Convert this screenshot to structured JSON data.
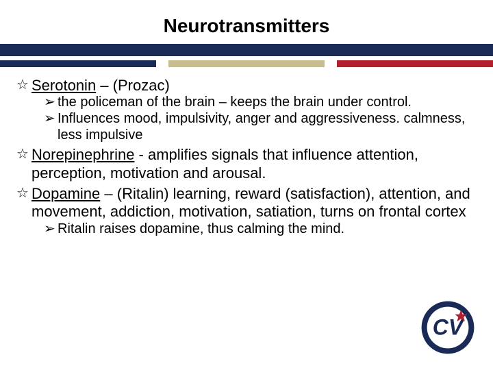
{
  "colors": {
    "navy": "#1a2a57",
    "red": "#b3202c",
    "khaki": "#c9bd8e",
    "white": "#ffffff",
    "text": "#000000"
  },
  "title": "Neurotransmitters",
  "items": [
    {
      "type": "star",
      "underlined": "Serotonin",
      "rest": " – (Prozac)"
    },
    {
      "type": "sub",
      "text": "the policeman of the brain – keeps the brain under control."
    },
    {
      "type": "sub",
      "text": "Influences mood, impulsivity, anger and aggressiveness. calmness, less impulsive"
    },
    {
      "type": "star",
      "underlined": "Norepinephrine",
      "rest": " - amplifies signals that influence attention, perception, motivation and arousal."
    },
    {
      "type": "star",
      "underlined": "Dopamine",
      "rest": " – (Ritalin) learning, reward (satisfaction), attention, and movement, addiction, motivation, satiation, turns on frontal cortex"
    },
    {
      "type": "sub",
      "text": "Ritalin raises dopamine, thus calming the mind."
    }
  ],
  "bullets": {
    "star": "☆",
    "arrow": "➢"
  },
  "logo": {
    "outer_fill": "#1a2a57",
    "inner_fill": "#ffffff",
    "letter_fill": "#1a2a57",
    "star_fill": "#b3202c",
    "letters": "CV"
  }
}
